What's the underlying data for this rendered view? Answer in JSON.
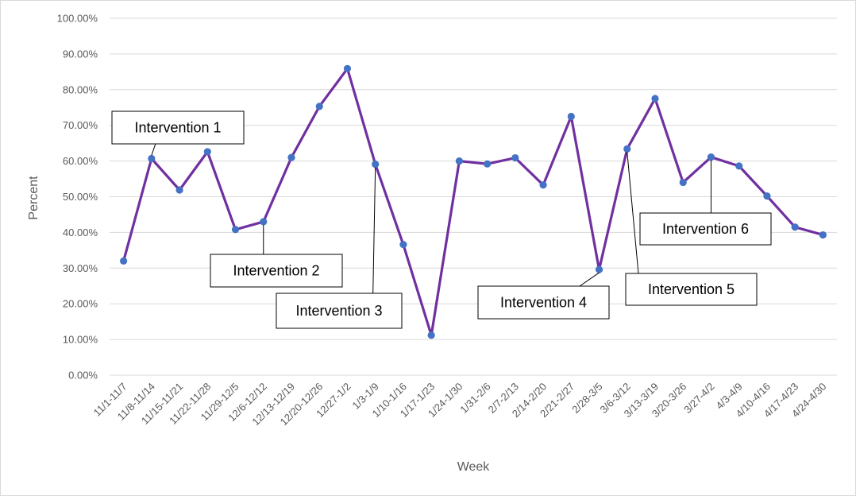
{
  "chart_data": {
    "type": "line",
    "xlabel": "Week",
    "ylabel": "Percent",
    "ylim": [
      0,
      100
    ],
    "y_ticks": [
      "0.00%",
      "10.00%",
      "20.00%",
      "30.00%",
      "40.00%",
      "50.00%",
      "60.00%",
      "70.00%",
      "80.00%",
      "90.00%",
      "100.00%"
    ],
    "grid": "horizontal",
    "legend": "none",
    "categories": [
      "11/1-11/7",
      "11/8-11/14",
      "11/15-11/21",
      "11/22-11/28",
      "11/29-12/5",
      "12/6-12/12",
      "12/13-12/19",
      "12/20-12/26",
      "12/27-1/2",
      "1/3-1/9",
      "1/10-1/16",
      "1/17-1/23",
      "1/24-1/30",
      "1/31-2/6",
      "2/7-2/13",
      "2/14-2/20",
      "2/21-2/27",
      "2/28-3/5",
      "3/6-3/12",
      "3/13-3/19",
      "3/20-3/26",
      "3/27-4/2",
      "4/3-4/9",
      "4/10-4/16",
      "4/17-4/23",
      "4/24-4/30"
    ],
    "series": [
      {
        "values": [
          32.0,
          60.7,
          51.9,
          62.6,
          40.8,
          43.0,
          61.0,
          75.3,
          85.9,
          59.1,
          36.6,
          11.2,
          60.0,
          59.2,
          60.9,
          53.3,
          72.5,
          29.6,
          63.4,
          77.5,
          54.0,
          61.1,
          58.6,
          50.2,
          41.5,
          39.3
        ],
        "color": "#7030a0",
        "marker_color": "#4472c4"
      }
    ],
    "annotations": [
      {
        "text": "Intervention 1",
        "category": "11/8-11/14"
      },
      {
        "text": "Intervention 2",
        "category": "12/6-12/12"
      },
      {
        "text": "Intervention 3",
        "category": "1/3-1/9"
      },
      {
        "text": "Intervention 4",
        "category": "2/28-3/5"
      },
      {
        "text": "Intervention 5",
        "category": "3/6-3/12"
      },
      {
        "text": "Intervention 6",
        "category": "3/27-4/2"
      }
    ]
  }
}
